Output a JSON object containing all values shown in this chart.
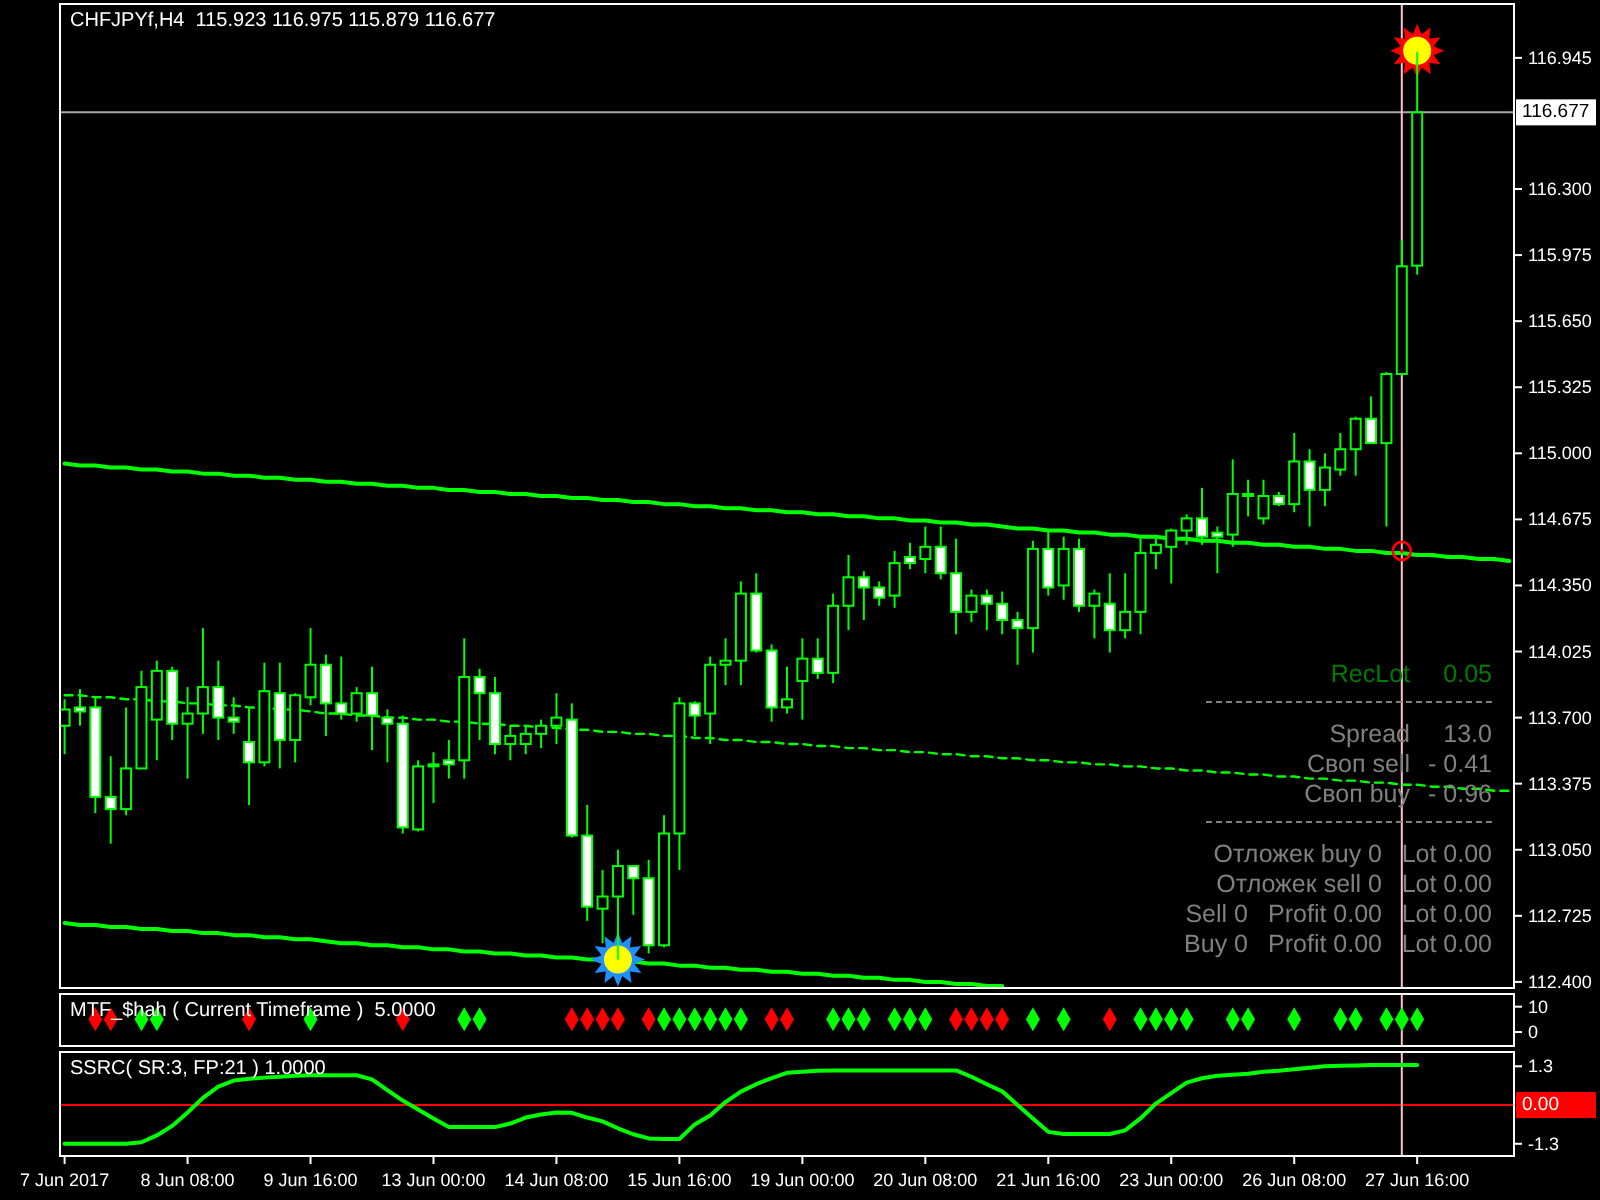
{
  "chart_data": [
    {
      "type": "candlestick",
      "title": "CHFJPYf,H4  115.923 116.975 115.879 116.677",
      "categories": [
        null,
        null,
        null,
        null,
        null,
        null,
        null,
        null,
        null,
        null,
        null,
        null,
        null,
        null,
        null,
        null,
        null,
        null,
        null,
        null,
        null,
        null,
        null,
        null,
        null,
        null,
        null,
        null,
        null,
        null,
        null,
        null,
        null,
        null,
        null,
        null,
        null,
        null,
        null,
        null,
        null,
        null,
        null,
        null,
        null,
        null,
        null,
        null,
        null,
        null,
        null,
        null,
        null,
        null,
        null,
        null,
        null,
        null,
        null,
        null,
        null,
        null,
        null,
        null,
        null,
        null,
        null,
        null,
        null,
        null,
        null,
        null,
        null,
        null,
        null,
        null,
        null,
        null,
        null,
        null,
        null,
        null,
        null,
        null,
        null,
        null,
        null,
        null,
        null,
        null,
        null,
        null,
        null,
        null,
        null
      ],
      "ohlc": [
        [
          113.66,
          113.79,
          113.52,
          113.74
        ],
        [
          113.75,
          113.84,
          113.66,
          113.73
        ],
        [
          113.75,
          113.8,
          113.23,
          113.31
        ],
        [
          113.31,
          113.51,
          113.08,
          113.25
        ],
        [
          113.25,
          113.75,
          113.22,
          113.45
        ],
        [
          113.45,
          113.93,
          113.45,
          113.85
        ],
        [
          113.69,
          113.98,
          113.49,
          113.93
        ],
        [
          113.93,
          113.95,
          113.59,
          113.67
        ],
        [
          113.67,
          113.85,
          113.4,
          113.72
        ],
        [
          113.72,
          114.14,
          113.62,
          113.85
        ],
        [
          113.85,
          113.98,
          113.59,
          113.7
        ],
        [
          113.7,
          113.8,
          113.62,
          113.68
        ],
        [
          113.58,
          113.75,
          113.27,
          113.48
        ],
        [
          113.48,
          113.97,
          113.46,
          113.83
        ],
        [
          113.82,
          113.97,
          113.45,
          113.59
        ],
        [
          113.59,
          113.82,
          113.48,
          113.81
        ],
        [
          113.8,
          114.14,
          113.76,
          113.96
        ],
        [
          113.96,
          114.01,
          113.61,
          113.77
        ],
        [
          113.77,
          114.0,
          113.69,
          113.72
        ],
        [
          113.72,
          113.85,
          113.68,
          113.82
        ],
        [
          113.82,
          113.95,
          113.54,
          113.71
        ],
        [
          113.7,
          113.74,
          113.48,
          113.67
        ],
        [
          113.67,
          113.71,
          113.13,
          113.16
        ],
        [
          113.15,
          113.49,
          113.14,
          113.46
        ],
        [
          113.47,
          113.53,
          113.28,
          113.47
        ],
        [
          113.49,
          113.59,
          113.4,
          113.47
        ],
        [
          113.49,
          114.09,
          113.4,
          113.9
        ],
        [
          113.9,
          113.94,
          113.59,
          113.82
        ],
        [
          113.82,
          113.9,
          113.52,
          113.57
        ],
        [
          113.57,
          113.66,
          113.49,
          113.61
        ],
        [
          113.57,
          113.66,
          113.52,
          113.62
        ],
        [
          113.62,
          113.69,
          113.55,
          113.66
        ],
        [
          113.66,
          113.82,
          113.57,
          113.7
        ],
        [
          113.69,
          113.77,
          113.11,
          113.12
        ],
        [
          113.12,
          113.27,
          112.7,
          112.77
        ],
        [
          112.76,
          112.95,
          112.59,
          112.82
        ],
        [
          112.82,
          113.05,
          112.51,
          112.97
        ],
        [
          112.97,
          112.97,
          112.73,
          112.91
        ],
        [
          112.91,
          113.0,
          112.54,
          112.58
        ],
        [
          112.58,
          113.22,
          112.57,
          113.13
        ],
        [
          113.13,
          113.8,
          112.95,
          113.77
        ],
        [
          113.77,
          113.78,
          113.61,
          113.71
        ],
        [
          113.72,
          114.0,
          113.57,
          113.96
        ],
        [
          113.96,
          114.09,
          113.86,
          113.98
        ],
        [
          113.98,
          114.37,
          113.86,
          114.31
        ],
        [
          114.31,
          114.41,
          114.02,
          114.03
        ],
        [
          114.03,
          114.06,
          113.68,
          113.75
        ],
        [
          113.75,
          113.95,
          113.72,
          113.79
        ],
        [
          113.88,
          114.09,
          113.69,
          113.99
        ],
        [
          113.99,
          114.09,
          113.89,
          113.92
        ],
        [
          113.92,
          114.31,
          113.87,
          114.25
        ],
        [
          114.25,
          114.5,
          114.13,
          114.39
        ],
        [
          114.39,
          114.42,
          114.18,
          114.34
        ],
        [
          114.34,
          114.37,
          114.25,
          114.29
        ],
        [
          114.3,
          114.52,
          114.24,
          114.46
        ],
        [
          114.49,
          114.56,
          114.43,
          114.46
        ],
        [
          114.48,
          114.64,
          114.41,
          114.54
        ],
        [
          114.54,
          114.64,
          114.38,
          114.41
        ],
        [
          114.41,
          114.58,
          114.11,
          114.22
        ],
        [
          114.22,
          114.33,
          114.17,
          114.3
        ],
        [
          114.3,
          114.33,
          114.13,
          114.26
        ],
        [
          114.26,
          114.32,
          114.11,
          114.18
        ],
        [
          114.18,
          114.22,
          113.96,
          114.14
        ],
        [
          114.14,
          114.57,
          114.02,
          114.53
        ],
        [
          114.53,
          114.62,
          114.3,
          114.34
        ],
        [
          114.35,
          114.59,
          114.28,
          114.53
        ],
        [
          114.53,
          114.58,
          114.22,
          114.25
        ],
        [
          114.25,
          114.33,
          114.09,
          114.31
        ],
        [
          114.26,
          114.41,
          114.02,
          114.13
        ],
        [
          114.13,
          114.41,
          114.09,
          114.22
        ],
        [
          114.22,
          114.58,
          114.11,
          114.51
        ],
        [
          114.51,
          114.58,
          114.43,
          114.55
        ],
        [
          114.54,
          114.63,
          114.36,
          114.62
        ],
        [
          114.62,
          114.7,
          114.55,
          114.68
        ],
        [
          114.68,
          114.83,
          114.55,
          114.59
        ],
        [
          114.61,
          114.64,
          114.41,
          114.59
        ],
        [
          114.6,
          114.97,
          114.54,
          114.8
        ],
        [
          114.8,
          114.87,
          114.69,
          114.8
        ],
        [
          114.68,
          114.87,
          114.65,
          114.79
        ],
        [
          114.79,
          114.81,
          114.74,
          114.75
        ],
        [
          114.75,
          115.1,
          114.71,
          114.96
        ],
        [
          114.96,
          115.02,
          114.64,
          114.82
        ],
        [
          114.82,
          115.0,
          114.74,
          114.93
        ],
        [
          114.92,
          115.1,
          114.89,
          115.02
        ],
        [
          115.02,
          115.18,
          114.89,
          115.17
        ],
        [
          115.17,
          115.28,
          115.05,
          115.05
        ],
        [
          115.05,
          115.4,
          114.64,
          115.39
        ],
        [
          115.39,
          116.05,
          115.39,
          115.92
        ],
        [
          115.923,
          116.975,
          115.879,
          116.677
        ],
        null,
        null,
        null,
        null,
        null,
        null
      ],
      "color": "#00ff00",
      "series": [
        {
          "type": "line",
          "color": "#00ff00",
          "values": [
            114.95,
            114.94,
            114.94,
            114.93,
            114.93,
            114.92,
            114.92,
            114.91,
            114.91,
            114.9,
            114.9,
            114.89,
            114.89,
            114.88,
            114.88,
            114.87,
            114.87,
            114.86,
            114.86,
            114.85,
            114.85,
            114.84,
            114.84,
            114.83,
            114.83,
            114.82,
            114.82,
            114.81,
            114.81,
            114.8,
            114.8,
            114.79,
            114.79,
            114.78,
            114.78,
            114.77,
            114.77,
            114.76,
            114.76,
            114.75,
            114.75,
            114.74,
            114.74,
            114.73,
            114.73,
            114.72,
            114.72,
            114.71,
            114.71,
            114.7,
            114.7,
            114.69,
            114.69,
            114.68,
            114.68,
            114.67,
            114.67,
            114.66,
            114.66,
            114.65,
            114.65,
            114.64,
            114.63,
            114.63,
            114.62,
            114.62,
            114.61,
            114.61,
            114.6,
            114.6,
            114.59,
            114.59,
            114.58,
            114.58,
            114.57,
            114.57,
            114.56,
            114.56,
            114.55,
            114.55,
            114.54,
            114.54,
            114.53,
            114.53,
            114.52,
            114.52,
            114.51,
            114.51,
            114.5,
            114.5,
            114.49,
            114.49,
            114.48,
            114.48,
            114.47
          ]
        },
        {
          "type": "line",
          "color": "#00ff00",
          "values": [
            112.69,
            112.68,
            112.68,
            112.67,
            112.67,
            112.66,
            112.66,
            112.65,
            112.65,
            112.64,
            112.64,
            112.63,
            112.63,
            112.62,
            112.62,
            112.61,
            112.61,
            112.6,
            112.59,
            112.59,
            112.58,
            112.58,
            112.57,
            112.57,
            112.56,
            112.56,
            112.55,
            112.55,
            112.54,
            112.54,
            112.53,
            112.53,
            112.52,
            112.52,
            112.51,
            112.51,
            112.5,
            112.5,
            112.49,
            112.49,
            112.48,
            112.48,
            112.47,
            112.47,
            112.46,
            112.46,
            112.45,
            112.45,
            112.44,
            112.44,
            112.43,
            112.43,
            112.42,
            112.42,
            112.41,
            112.41,
            112.4,
            112.4,
            112.39,
            112.39,
            112.38,
            112.38,
            null,
            null,
            null,
            null,
            null,
            null,
            null,
            null,
            null,
            null,
            null,
            null,
            null,
            null,
            null,
            null,
            null,
            null,
            null,
            null,
            null,
            null,
            null,
            null,
            null,
            null,
            null,
            null,
            null,
            null,
            null,
            null,
            null
          ]
        },
        {
          "type": "line",
          "color": "#00ff00",
          "line_style": "dashed",
          "values": [
            113.81,
            113.81,
            113.8,
            113.8,
            113.79,
            113.79,
            113.78,
            113.78,
            113.77,
            113.77,
            113.76,
            113.76,
            113.75,
            113.75,
            113.74,
            113.74,
            113.73,
            113.72,
            113.72,
            113.71,
            113.71,
            113.7,
            113.7,
            113.69,
            113.69,
            113.68,
            113.68,
            113.67,
            113.67,
            113.66,
            113.66,
            113.65,
            113.65,
            113.64,
            113.64,
            113.63,
            113.63,
            113.62,
            113.62,
            113.61,
            113.61,
            113.6,
            113.6,
            113.59,
            113.59,
            113.58,
            113.58,
            113.57,
            113.57,
            113.56,
            113.56,
            113.55,
            113.55,
            113.54,
            113.54,
            113.53,
            113.53,
            113.52,
            113.52,
            113.51,
            113.51,
            113.5,
            113.5,
            113.49,
            113.49,
            113.48,
            113.48,
            113.47,
            113.47,
            113.46,
            113.46,
            113.45,
            113.45,
            113.44,
            113.44,
            113.43,
            113.43,
            113.42,
            113.42,
            113.41,
            113.41,
            113.4,
            113.4,
            113.39,
            113.39,
            113.38,
            113.38,
            113.37,
            113.37,
            113.36,
            113.36,
            113.35,
            113.35,
            113.34,
            113.34
          ]
        },
        {
          "type": "scatter",
          "color": "#1e90ff",
          "marker": "star",
          "values": [
            null,
            null,
            null,
            null,
            null,
            null,
            null,
            null,
            null,
            null,
            null,
            null,
            null,
            null,
            null,
            null,
            null,
            null,
            null,
            null,
            null,
            null,
            null,
            null,
            null,
            null,
            null,
            null,
            null,
            null,
            null,
            null,
            null,
            null,
            null,
            null,
            112.51,
            null,
            null,
            null,
            null,
            null,
            null,
            null,
            null,
            null,
            null,
            null,
            null,
            null,
            null,
            null,
            null,
            null,
            null,
            null,
            null,
            null,
            null,
            null,
            null,
            null,
            null,
            null,
            null,
            null,
            null,
            null,
            null,
            null,
            null,
            null,
            null,
            null,
            null,
            null,
            null,
            null,
            null,
            null,
            null,
            null,
            null,
            null,
            null,
            null,
            null,
            null,
            null,
            null,
            null,
            null,
            null,
            null,
            null
          ]
        },
        {
          "type": "scatter",
          "color": "#ff0000",
          "marker": "star",
          "values": [
            null,
            null,
            null,
            null,
            null,
            null,
            null,
            null,
            null,
            null,
            null,
            null,
            null,
            null,
            null,
            null,
            null,
            null,
            null,
            null,
            null,
            null,
            null,
            null,
            null,
            null,
            null,
            null,
            null,
            null,
            null,
            null,
            null,
            null,
            null,
            null,
            null,
            null,
            null,
            null,
            null,
            null,
            null,
            null,
            null,
            null,
            null,
            null,
            null,
            null,
            null,
            null,
            null,
            null,
            null,
            null,
            null,
            null,
            null,
            null,
            null,
            null,
            null,
            null,
            null,
            null,
            null,
            null,
            null,
            null,
            null,
            null,
            null,
            null,
            null,
            null,
            null,
            null,
            null,
            null,
            null,
            null,
            null,
            null,
            null,
            null,
            null,
            null,
            116.98,
            null,
            null,
            null,
            null,
            null,
            null
          ]
        },
        {
          "type": "scatter",
          "color": "#ff0000",
          "marker": "circle",
          "values": [
            null,
            null,
            null,
            null,
            null,
            null,
            null,
            null,
            null,
            null,
            null,
            null,
            null,
            null,
            null,
            null,
            null,
            null,
            null,
            null,
            null,
            null,
            null,
            null,
            null,
            null,
            null,
            null,
            null,
            null,
            null,
            null,
            null,
            null,
            null,
            null,
            null,
            null,
            null,
            null,
            null,
            null,
            null,
            null,
            null,
            null,
            null,
            null,
            null,
            null,
            null,
            null,
            null,
            null,
            null,
            null,
            null,
            null,
            null,
            null,
            null,
            null,
            null,
            null,
            null,
            null,
            null,
            null,
            null,
            null,
            null,
            null,
            null,
            null,
            null,
            null,
            null,
            null,
            null,
            null,
            null,
            null,
            null,
            null,
            null,
            null,
            null,
            114.52,
            null,
            null,
            null,
            null,
            null,
            null,
            null
          ]
        }
      ],
      "ylim": [
        112.37,
        117.21
      ],
      "yticks": [
        {
          "value": 112.4,
          "label": "112.400"
        },
        {
          "value": 112.725,
          "label": "112.725"
        },
        {
          "value": 113.05,
          "label": "113.050"
        },
        {
          "value": 113.375,
          "label": "113.375"
        },
        {
          "value": 113.7,
          "label": "113.700"
        },
        {
          "value": 114.025,
          "label": "114.025"
        },
        {
          "value": 114.35,
          "label": "114.350"
        },
        {
          "value": 114.675,
          "label": "114.675"
        },
        {
          "value": 115,
          "label": "115.000"
        },
        {
          "value": 115.325,
          "label": "115.325"
        },
        {
          "value": 115.65,
          "label": "115.650"
        },
        {
          "value": 115.975,
          "label": "115.975"
        },
        {
          "value": 116.3,
          "label": "116.300"
        },
        {
          "value": 116.945,
          "label": "116.945"
        }
      ],
      "tick_labels": "y",
      "ref_lines": [
        {
          "axis": "y",
          "value": 116.677,
          "label": "116.677",
          "color": "#a0a8b0"
        }
      ],
      "annotations": [
        "RecLot",
        "0.05",
        "Spread",
        "13.0",
        "Своп sell",
        "- 0.41",
        "Своп buy",
        "- 0.96",
        "Отложек buy 0",
        "Lot 0.00",
        "Отложек sell 0",
        "Lot 0.00",
        "Sell 0",
        "Profit 0.00",
        "Lot 0.00",
        "Buy 0",
        "Profit 0.00",
        "Lot 0.00"
      ]
    },
    {
      "type": "scatter",
      "title": "MTF_$hah ( Current Timeframe )  5.0000",
      "marker": "diamond",
      "categories": [
        null,
        null,
        null,
        null,
        null,
        null,
        null,
        null,
        null,
        null,
        null,
        null,
        null,
        null,
        null,
        null,
        null,
        null,
        null,
        null,
        null,
        null,
        null,
        null,
        null,
        null,
        null,
        null,
        null,
        null,
        null,
        null,
        null,
        null,
        null,
        null,
        null,
        null,
        null,
        null,
        null,
        null,
        null,
        null,
        null,
        null,
        null,
        null,
        null,
        null,
        null,
        null,
        null,
        null,
        null,
        null,
        null,
        null,
        null,
        null,
        null,
        null,
        null,
        null,
        null,
        null,
        null,
        null,
        null,
        null,
        null,
        null,
        null,
        null,
        null,
        null,
        null,
        null,
        null,
        null,
        null,
        null,
        null,
        null,
        null,
        null,
        null,
        null,
        null,
        null,
        null,
        null,
        null,
        null,
        null
      ],
      "series": [
        {
          "color": "#ff0000",
          "values": [
            null,
            null,
            5,
            5,
            null,
            null,
            null,
            null,
            null,
            null,
            null,
            null,
            5,
            null,
            null,
            null,
            null,
            null,
            null,
            null,
            null,
            null,
            5,
            null,
            null,
            null,
            null,
            null,
            null,
            null,
            null,
            null,
            null,
            5,
            5,
            5,
            5,
            null,
            5,
            null,
            null,
            null,
            null,
            null,
            null,
            null,
            5,
            5,
            null,
            null,
            null,
            null,
            null,
            null,
            null,
            null,
            null,
            null,
            5,
            5,
            5,
            5,
            null,
            null,
            null,
            null,
            null,
            null,
            5,
            null,
            null,
            null,
            null,
            null,
            null,
            null,
            null,
            null,
            null,
            null,
            null,
            null,
            null,
            null,
            null,
            null,
            null,
            null,
            null,
            null,
            null,
            null,
            null,
            null,
            null
          ]
        },
        {
          "color": "#00ff00",
          "values": [
            null,
            null,
            null,
            null,
            null,
            5,
            5,
            null,
            null,
            null,
            null,
            null,
            null,
            null,
            null,
            null,
            5,
            null,
            null,
            null,
            null,
            null,
            null,
            null,
            null,
            null,
            5,
            5,
            null,
            null,
            null,
            null,
            null,
            null,
            null,
            null,
            null,
            null,
            null,
            5,
            5,
            5,
            5,
            5,
            5,
            null,
            null,
            null,
            null,
            null,
            5,
            5,
            5,
            null,
            5,
            5,
            5,
            null,
            null,
            null,
            null,
            null,
            null,
            5,
            null,
            5,
            null,
            null,
            null,
            null,
            5,
            5,
            5,
            5,
            null,
            null,
            5,
            5,
            null,
            null,
            5,
            null,
            null,
            5,
            5,
            null,
            5,
            5,
            5,
            null,
            null,
            null,
            null,
            null,
            null
          ]
        }
      ],
      "ylim": [
        -5.5,
        15
      ],
      "yticks": [
        0,
        10
      ],
      "tick_labels": "y"
    },
    {
      "type": "line",
      "title": "SSRC( SR:3, FP:21 ) 1.0000",
      "categories": [
        "7 Jun 2017",
        null,
        null,
        null,
        null,
        null,
        null,
        null,
        "8 Jun 08:00",
        null,
        null,
        null,
        null,
        null,
        null,
        null,
        "9 Jun 16:00",
        null,
        null,
        null,
        null,
        null,
        null,
        null,
        "13 Jun 00:00",
        null,
        null,
        null,
        null,
        null,
        null,
        null,
        "14 Jun 08:00",
        null,
        null,
        null,
        null,
        null,
        null,
        null,
        "15 Jun 16:00",
        null,
        null,
        null,
        null,
        null,
        null,
        null,
        "19 Jun 00:00",
        null,
        null,
        null,
        null,
        null,
        null,
        null,
        "20 Jun 08:00",
        null,
        null,
        null,
        null,
        null,
        null,
        null,
        "21 Jun 16:00",
        null,
        null,
        null,
        null,
        null,
        null,
        null,
        "23 Jun 00:00",
        null,
        null,
        null,
        null,
        null,
        null,
        null,
        "26 Jun 08:00",
        null,
        null,
        null,
        null,
        null,
        null,
        null,
        "27 Jun 16:00",
        null,
        null,
        null,
        null,
        null,
        null
      ],
      "series": [
        {
          "color": "#00ff00",
          "values": [
            -1.3,
            -1.3,
            -1.3,
            -1.3,
            -1.3,
            -1.25,
            -1.02,
            -0.7,
            -0.25,
            0.24,
            0.62,
            0.82,
            0.88,
            0.92,
            0.95,
            0.98,
            1.0,
            1.0,
            1.0,
            1.0,
            0.86,
            0.5,
            0.15,
            -0.15,
            -0.45,
            -0.74,
            -0.74,
            -0.74,
            -0.74,
            -0.62,
            -0.42,
            -0.32,
            -0.25,
            -0.26,
            -0.42,
            -0.55,
            -0.78,
            -0.98,
            -1.12,
            -1.14,
            -1.14,
            -0.65,
            -0.35,
            0.1,
            0.45,
            0.7,
            0.9,
            1.08,
            1.12,
            1.15,
            1.16,
            1.16,
            1.16,
            1.16,
            1.16,
            1.16,
            1.16,
            1.16,
            1.16,
            0.95,
            0.7,
            0.46,
            0.0,
            -0.45,
            -0.9,
            -0.97,
            -0.97,
            -0.97,
            -0.97,
            -0.85,
            -0.45,
            0.05,
            0.4,
            0.75,
            0.9,
            0.98,
            1.02,
            1.05,
            1.12,
            1.15,
            1.2,
            1.25,
            1.3,
            1.32,
            1.33,
            1.34,
            1.34,
            1.34,
            1.34,
            null,
            null,
            null,
            null,
            null,
            null
          ]
        }
      ],
      "ylim": [
        -1.71,
        1.78
      ],
      "yticks": [
        -1.3,
        1.3
      ],
      "ref_lines": [
        {
          "axis": "y",
          "value": 0,
          "label": "0.00",
          "color": "#ff0000"
        }
      ]
    }
  ]
}
